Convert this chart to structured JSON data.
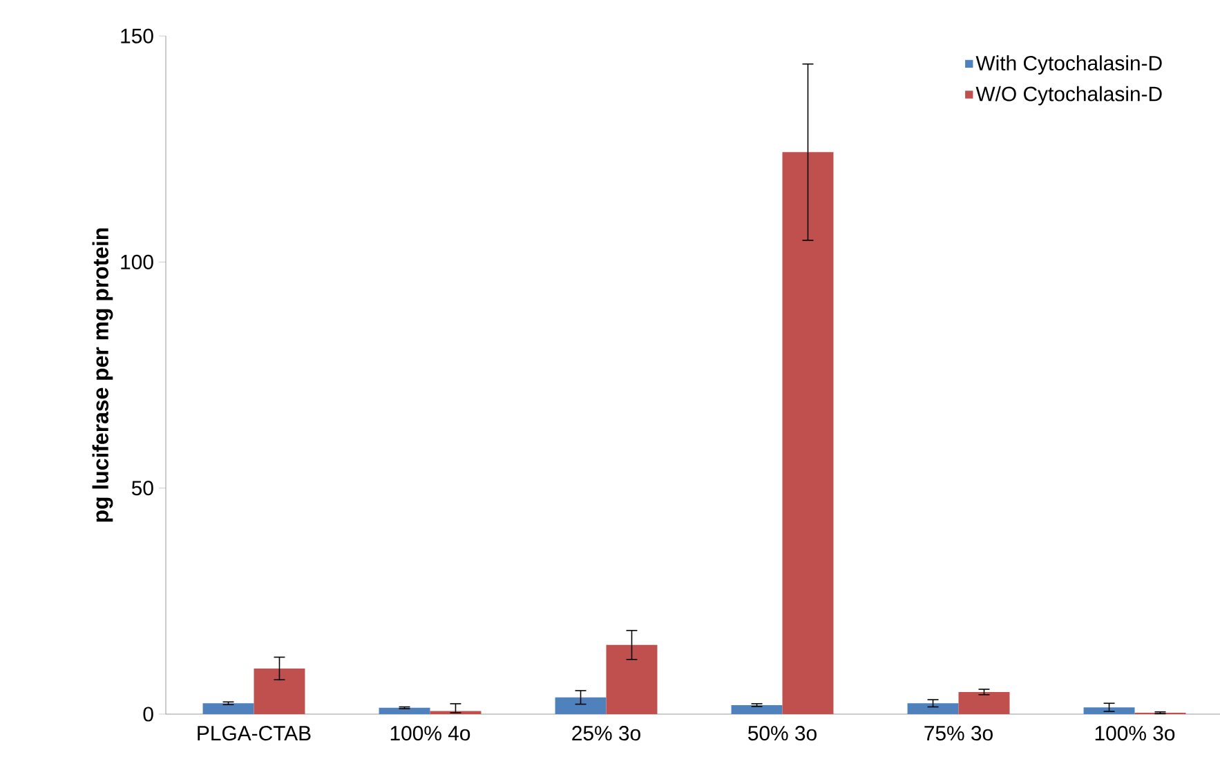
{
  "chart_data": {
    "type": "bar",
    "ylabel": "pg luciferase per mg protein",
    "categories": [
      "PLGA-CTAB",
      "100% 4o",
      "25% 3o",
      "50% 3o",
      "75% 3o",
      "100% 3o"
    ],
    "series": [
      {
        "name": "With Cytochalasin-D",
        "color": "#4f81bd",
        "values": [
          2.4,
          1.4,
          3.7,
          2.0,
          2.4,
          1.5
        ],
        "errors": [
          0.3,
          0.2,
          1.5,
          0.3,
          0.8,
          0.9
        ]
      },
      {
        "name": "W/O Cytochalasin-D",
        "color": "#c0504d",
        "values": [
          10.1,
          0.7,
          15.3,
          124.3,
          4.9,
          0.3
        ],
        "errors": [
          2.5,
          [
            0.3,
            2.3
          ],
          3.2,
          19.5,
          0.6,
          0.2
        ]
      }
    ],
    "ylim": [
      0,
      150
    ],
    "yticks": [
      0,
      50,
      100,
      150
    ],
    "grid": false,
    "legend": "top right"
  }
}
